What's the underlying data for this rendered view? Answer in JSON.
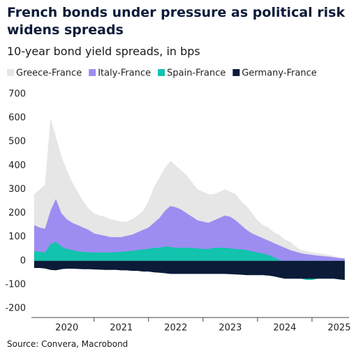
{
  "chart_data": {
    "type": "area",
    "title": "French bonds under pressure as political risk widens spreads",
    "subtitle": "10-year bond yield spreads, in bps",
    "source": "Source: Convera, Macrobond",
    "x": [
      2019.9,
      2020.0,
      2020.1,
      2020.2,
      2020.3,
      2020.4,
      2020.5,
      2020.6,
      2020.7,
      2020.8,
      2020.9,
      2021.0,
      2021.1,
      2021.2,
      2021.3,
      2021.4,
      2021.5,
      2021.6,
      2021.7,
      2021.8,
      2021.9,
      2022.0,
      2022.1,
      2022.2,
      2022.3,
      2022.4,
      2022.5,
      2022.6,
      2022.7,
      2022.8,
      2022.9,
      2023.0,
      2023.1,
      2023.2,
      2023.3,
      2023.4,
      2023.5,
      2023.6,
      2023.7,
      2023.8,
      2023.9,
      2024.0,
      2024.1,
      2024.2,
      2024.3,
      2024.4,
      2024.5,
      2024.6,
      2024.7,
      2024.8,
      2024.9,
      2025.0,
      2025.1,
      2025.2,
      2025.3,
      2025.4,
      2025.5,
      2025.6
    ],
    "series": [
      {
        "name": "Greece-France",
        "color": "#e6e6e6",
        "values": [
          280,
          300,
          320,
          600,
          520,
          440,
          380,
          330,
          290,
          250,
          220,
          200,
          190,
          185,
          175,
          170,
          165,
          165,
          175,
          190,
          210,
          250,
          310,
          350,
          390,
          420,
          400,
          380,
          360,
          330,
          300,
          290,
          280,
          280,
          290,
          300,
          290,
          280,
          250,
          230,
          200,
          170,
          150,
          140,
          120,
          110,
          90,
          80,
          60,
          45,
          40,
          35,
          32,
          30,
          25,
          20,
          15,
          10
        ]
      },
      {
        "name": "Italy-France",
        "color": "#9d8df1",
        "values": [
          150,
          140,
          135,
          210,
          260,
          200,
          175,
          160,
          150,
          140,
          130,
          115,
          110,
          105,
          100,
          100,
          100,
          105,
          110,
          120,
          130,
          140,
          160,
          180,
          210,
          230,
          225,
          215,
          200,
          185,
          170,
          165,
          160,
          170,
          180,
          190,
          185,
          170,
          150,
          130,
          115,
          105,
          95,
          85,
          75,
          65,
          55,
          45,
          38,
          32,
          28,
          25,
          22,
          20,
          18,
          15,
          12,
          10
        ]
      },
      {
        "name": "Spain-France",
        "color": "#12c3ad",
        "values": [
          40,
          38,
          35,
          70,
          80,
          60,
          50,
          45,
          40,
          38,
          36,
          35,
          35,
          35,
          35,
          36,
          38,
          40,
          42,
          45,
          48,
          50,
          55,
          55,
          60,
          58,
          55,
          55,
          55,
          55,
          52,
          50,
          50,
          55,
          55,
          55,
          52,
          50,
          48,
          45,
          40,
          35,
          30,
          25,
          15,
          5,
          -5,
          -30,
          -60,
          -75,
          -80,
          -80,
          -75,
          -70,
          -70,
          -70,
          -75,
          -80
        ]
      },
      {
        "name": "Germany-France",
        "color": "#0b1b38",
        "values": [
          -30,
          -30,
          -32,
          -38,
          -40,
          -35,
          -33,
          -33,
          -34,
          -35,
          -35,
          -36,
          -37,
          -38,
          -38,
          -38,
          -40,
          -40,
          -42,
          -42,
          -45,
          -45,
          -48,
          -50,
          -52,
          -55,
          -55,
          -55,
          -55,
          -55,
          -55,
          -55,
          -55,
          -55,
          -55,
          -55,
          -56,
          -57,
          -58,
          -60,
          -60,
          -60,
          -60,
          -62,
          -65,
          -70,
          -75,
          -75,
          -75,
          -75,
          -75,
          -75,
          -75,
          -75,
          -75,
          -75,
          -78,
          -80
        ]
      }
    ],
    "xlim": [
      2019.85,
      2025.68
    ],
    "xticks": [
      {
        "value": 2020.5,
        "label": "2020"
      },
      {
        "value": 2021.5,
        "label": "2021"
      },
      {
        "value": 2022.5,
        "label": "2022"
      },
      {
        "value": 2023.5,
        "label": "2023"
      },
      {
        "value": 2024.5,
        "label": "2024"
      },
      {
        "value": 2025.5,
        "label": "2025"
      }
    ],
    "ylim": [
      -238,
      729
    ],
    "yticks": [
      -200,
      -100,
      0,
      100,
      200,
      300,
      400,
      500,
      600,
      700
    ],
    "grid": false
  }
}
